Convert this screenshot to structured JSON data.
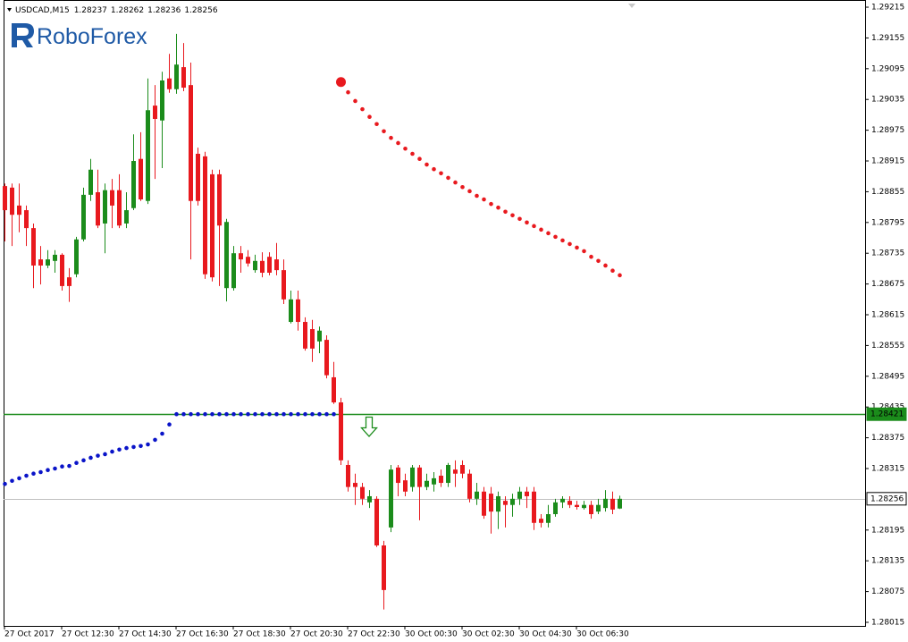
{
  "chart_data": {
    "type": "candlestick",
    "title": "USDCAD,M15",
    "logo": "RoboForex",
    "x": [
      "27 Oct 2017",
      null,
      null,
      null,
      null,
      null,
      null,
      null,
      "27 Oct 12:30",
      null,
      null,
      null,
      null,
      null,
      null,
      null,
      "27 Oct 14:30",
      null,
      null,
      null,
      null,
      null,
      null,
      null,
      "27 Oct 16:30",
      null,
      null,
      null,
      null,
      null,
      null,
      null,
      "27 Oct 18:30",
      null,
      null,
      null,
      null,
      null,
      null,
      null,
      "27 Oct 20:30",
      null,
      null,
      null,
      null,
      null,
      null,
      null,
      "27 Oct 22:30",
      null,
      null,
      null,
      null,
      null,
      null,
      null,
      "30 Oct 00:30",
      null,
      null,
      null,
      null,
      null,
      null,
      null,
      "30 Oct 02:30",
      null,
      null,
      null,
      null,
      null,
      null,
      null,
      "30 Oct 04:30",
      null,
      null,
      null,
      null,
      null,
      null,
      null,
      "30 Oct 06:30",
      null,
      null,
      null,
      null,
      null,
      null
    ],
    "open": [
      1.28866,
      1.28863,
      1.28828,
      1.28819,
      1.28784,
      1.28723,
      1.28711,
      1.2872,
      1.28732,
      1.28688,
      1.28694,
      1.28762,
      1.28849,
      1.28854,
      1.28793,
      1.28858,
      1.28858,
      1.28793,
      1.28823,
      1.28919,
      1.28837,
      1.29023,
      1.28994,
      1.29076,
      1.29055,
      1.29098,
      1.29063,
      1.28929,
      1.28924,
      1.28889,
      1.28889,
      1.28667,
      1.28667,
      1.28735,
      1.28728,
      1.28702,
      1.2872,
      1.28728,
      1.28723,
      1.28702,
      1.28601,
      1.28645,
      1.28601,
      1.28587,
      1.28563,
      1.28566,
      1.28493,
      1.28444,
      1.28322,
      1.28287,
      1.28279,
      1.28249,
      1.28256,
      1.28165,
      1.282,
      1.28317,
      1.28292,
      1.28279,
      1.28317,
      1.28279,
      1.28284,
      1.28301,
      1.28287,
      1.28313,
      1.28322,
      1.28305,
      1.28256,
      1.2827,
      1.28266,
      1.28231,
      1.28252,
      1.28244,
      1.28256,
      1.2827,
      1.2827,
      1.28217,
      1.28209,
      1.28226,
      1.28249,
      1.28252,
      1.28244,
      1.28238,
      1.28244,
      1.28231,
      1.28238,
      1.28256,
      1.28237
    ],
    "high": [
      1.28871,
      1.28871,
      1.28871,
      1.28828,
      1.28793,
      1.28749,
      1.28741,
      1.28741,
      1.28735,
      1.28706,
      1.28767,
      1.28863,
      1.28919,
      1.28898,
      1.28871,
      1.2888,
      1.28889,
      1.28854,
      1.28967,
      1.28971,
      1.29076,
      1.29063,
      1.29089,
      1.29124,
      1.29163,
      1.29145,
      1.29107,
      1.28941,
      1.28933,
      1.28898,
      1.28898,
      1.28802,
      1.28749,
      1.28749,
      1.28741,
      1.28732,
      1.28737,
      1.28737,
      1.28755,
      1.28723,
      1.28662,
      1.28662,
      1.2861,
      1.28605,
      1.28592,
      1.28575,
      1.28523,
      1.28453,
      1.28331,
      1.28305,
      1.28287,
      1.28273,
      1.28261,
      1.28174,
      1.28322,
      1.28322,
      1.28305,
      1.28322,
      1.28322,
      1.28305,
      1.28308,
      1.28313,
      1.28326,
      1.28331,
      1.28331,
      1.28313,
      1.28287,
      1.28279,
      1.28279,
      1.2827,
      1.28261,
      1.28266,
      1.28279,
      1.28279,
      1.28279,
      1.28226,
      1.28244,
      1.28256,
      1.28261,
      1.28261,
      1.28252,
      1.28252,
      1.28252,
      1.28256,
      1.28273,
      1.2827,
      1.28262
    ],
    "low": [
      1.28758,
      1.28749,
      1.28776,
      1.28749,
      1.28667,
      1.28674,
      1.28706,
      1.28697,
      1.28662,
      1.2864,
      1.28688,
      1.28758,
      1.28837,
      1.28784,
      1.28735,
      1.28784,
      1.28784,
      1.28784,
      1.28819,
      1.28837,
      1.28831,
      1.2888,
      1.28901,
      1.29048,
      1.29046,
      1.29051,
      1.28723,
      1.28828,
      1.28685,
      1.2868,
      1.28671,
      1.28641,
      1.28662,
      1.28697,
      1.28709,
      1.28697,
      1.28688,
      1.28692,
      1.28692,
      1.28636,
      1.28598,
      1.28584,
      1.28545,
      1.28523,
      1.2854,
      1.28491,
      1.28441,
      1.28322,
      1.2827,
      1.28244,
      1.28244,
      1.28238,
      1.28162,
      1.2804,
      1.28191,
      1.28261,
      1.28261,
      1.2827,
      1.28214,
      1.28273,
      1.2827,
      1.28279,
      1.28279,
      1.28279,
      1.28296,
      1.28249,
      1.28244,
      1.28217,
      1.28188,
      1.28197,
      1.282,
      1.28221,
      1.28244,
      1.28238,
      1.28195,
      1.282,
      1.282,
      1.28221,
      1.28238,
      1.28238,
      1.28235,
      1.28235,
      1.28217,
      1.28226,
      1.28231,
      1.28226,
      1.28236
    ],
    "close": [
      1.28819,
      1.2881,
      1.2881,
      1.28784,
      1.28711,
      1.28711,
      1.28723,
      1.28732,
      1.28671,
      1.28671,
      1.28762,
      1.28849,
      1.28898,
      1.28789,
      1.28858,
      1.28828,
      1.28789,
      1.28819,
      1.28915,
      1.2884,
      1.29014,
      1.28997,
      1.29072,
      1.29055,
      1.29103,
      1.29058,
      1.28837,
      1.28837,
      1.28694,
      1.28688,
      1.28789,
      1.28796,
      1.28735,
      1.28723,
      1.28715,
      1.2872,
      1.28697,
      1.28697,
      1.28702,
      1.28645,
      1.28645,
      1.28601,
      1.28549,
      1.28549,
      1.28584,
      1.28497,
      1.28444,
      1.28331,
      1.28279,
      1.28279,
      1.28256,
      1.28261,
      1.28165,
      1.28078,
      1.28313,
      1.28287,
      1.2827,
      1.28317,
      1.28279,
      1.28291,
      1.28296,
      1.28287,
      1.28322,
      1.28305,
      1.28305,
      1.28256,
      1.2827,
      1.28223,
      1.28231,
      1.28261,
      1.28244,
      1.28256,
      1.2827,
      1.28261,
      1.28209,
      1.28209,
      1.28226,
      1.28249,
      1.28256,
      1.28244,
      1.2824,
      1.28244,
      1.28226,
      1.28244,
      1.28256,
      1.28235,
      1.28256
    ],
    "up_color": "#1b8c1b",
    "down_color": "#e8191e",
    "indicators": [
      {
        "color": "#0a14c8",
        "values": [
          1.28285,
          1.28291,
          1.28296,
          1.28301,
          1.28305,
          1.28308,
          1.28312,
          1.28315,
          1.28319,
          1.2832,
          1.28326,
          1.28331,
          1.28336,
          1.2834,
          1.28343,
          1.28348,
          1.28352,
          1.28355,
          1.28357,
          1.28359,
          1.28362,
          1.28371,
          1.28383,
          1.28401,
          1.28421,
          1.28421,
          1.28421,
          1.28421,
          1.28421,
          1.28421,
          1.28421,
          1.28421,
          1.28421,
          1.28421,
          1.28421,
          1.28421,
          1.28421,
          1.28421,
          1.28421,
          1.28421,
          1.28421,
          1.28421,
          1.28421,
          1.28421,
          1.28421,
          1.28421,
          1.28421,
          null,
          null,
          null,
          null,
          null,
          null,
          null,
          null,
          null,
          null,
          null,
          null,
          null,
          null,
          null,
          null,
          null,
          null,
          null,
          null,
          null,
          null,
          null,
          null,
          null,
          null,
          null,
          null,
          null,
          null,
          null,
          null,
          null,
          null,
          null,
          null,
          null,
          null,
          null,
          null
        ]
      },
      {
        "color": "#e8191e",
        "values": [
          null,
          null,
          null,
          null,
          null,
          null,
          null,
          null,
          null,
          null,
          null,
          null,
          null,
          null,
          null,
          null,
          null,
          null,
          null,
          null,
          null,
          null,
          null,
          null,
          null,
          null,
          null,
          null,
          null,
          null,
          null,
          null,
          null,
          null,
          null,
          null,
          null,
          null,
          null,
          null,
          null,
          null,
          null,
          null,
          null,
          null,
          null,
          1.29069,
          1.29049,
          1.29032,
          1.29016,
          1.29001,
          1.28987,
          1.28973,
          1.2896,
          1.2895,
          1.28939,
          1.28929,
          1.28919,
          1.28908,
          1.28899,
          1.28891,
          1.28882,
          1.28873,
          1.28864,
          1.28856,
          1.28847,
          1.2884,
          1.28831,
          1.28824,
          1.28816,
          1.28809,
          1.28802,
          1.28795,
          1.28788,
          1.28781,
          1.28774,
          1.28767,
          1.2876,
          1.28753,
          1.28746,
          1.28739,
          1.28728,
          1.2872,
          1.28711,
          1.28701,
          1.28692
        ]
      }
    ],
    "hlines": [
      {
        "value": 1.28421,
        "color": "#1b8c1b"
      },
      {
        "value": 1.28256,
        "color": "#c0c0c0"
      }
    ],
    "ylim": [
      1.28008,
      1.29229
    ],
    "yticks": [
      1.29215,
      1.29155,
      1.29095,
      1.29035,
      1.28975,
      1.28915,
      1.28855,
      1.28795,
      1.28735,
      1.28675,
      1.28615,
      1.28555,
      1.28495,
      1.28435,
      1.28375,
      1.28315,
      1.28195,
      1.28135,
      1.28075,
      1.28015
    ]
  }
}
